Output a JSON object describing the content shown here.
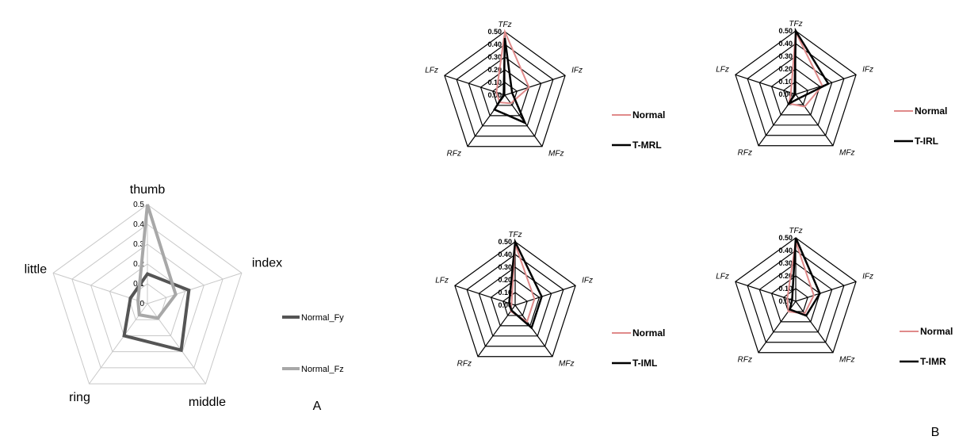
{
  "panel_labels": {
    "a": "A",
    "b": "B"
  },
  "colors": {
    "normal": "#e08a8a",
    "test": "#000000",
    "fy": "#555555",
    "fz": "#a8a8a8",
    "grid_light": "#c8c8c8",
    "grid_dark": "#000000"
  },
  "chart_data": [
    {
      "type": "radar",
      "axes": [
        "thumb",
        "index",
        "middle",
        "ring",
        "little"
      ],
      "tick_labels": [
        "0",
        "0.1",
        "0.2",
        "0.3",
        "0.4",
        "0.5"
      ],
      "ylim": [
        0,
        0.5
      ],
      "legend_placement": "right",
      "series": [
        {
          "name": "Normal_Fy",
          "values": [
            0.15,
            0.22,
            0.29,
            0.2,
            0.09
          ]
        },
        {
          "name": "Normal_Fz",
          "values": [
            0.5,
            0.15,
            0.09,
            0.07,
            0.05
          ]
        }
      ]
    },
    {
      "type": "radar",
      "axes": [
        "TFz",
        "IFz",
        "MFz",
        "RFz",
        "LFz"
      ],
      "tick_labels": [
        "0.00",
        "0.10",
        "0.20",
        "0.30",
        "0.40",
        "0.50"
      ],
      "ylim": [
        0,
        0.5
      ],
      "legend_placement": "right",
      "series": [
        {
          "name": "Normal",
          "values": [
            0.5,
            0.2,
            0.08,
            0.07,
            0.07
          ]
        },
        {
          "name": "T-MRL",
          "values": [
            0.45,
            0.06,
            0.27,
            0.14,
            0.01
          ]
        }
      ]
    },
    {
      "type": "radar",
      "axes": [
        "TFz",
        "IFz",
        "MFz",
        "RFz",
        "LFz"
      ],
      "tick_labels": [
        "0.00",
        "0.10",
        "0.20",
        "0.30",
        "0.40",
        "0.50"
      ],
      "ylim": [
        0,
        0.5
      ],
      "legend_placement": "right",
      "series": [
        {
          "name": "Normal",
          "values": [
            0.49,
            0.22,
            0.12,
            0.09,
            0.04
          ]
        },
        {
          "name": "T-IRL",
          "values": [
            0.5,
            0.27,
            0.04,
            0.09,
            0.01
          ]
        }
      ]
    },
    {
      "type": "radar",
      "axes": [
        "TFz",
        "IFz",
        "MFz",
        "RFz",
        "LFz"
      ],
      "tick_labels": [
        "0.00",
        "0.10",
        "0.20",
        "0.30",
        "0.40",
        "0.50"
      ],
      "ylim": [
        0,
        0.5
      ],
      "legend_placement": "right",
      "series": [
        {
          "name": "Normal",
          "values": [
            0.48,
            0.16,
            0.16,
            0.06,
            0.03
          ]
        },
        {
          "name": "T-IML",
          "values": [
            0.5,
            0.22,
            0.22,
            0.05,
            0.05
          ]
        }
      ]
    },
    {
      "type": "radar",
      "axes": [
        "TFz",
        "IFz",
        "MFz",
        "RFz",
        "LFz"
      ],
      "tick_labels": [
        "0.00",
        "0.10",
        "0.20",
        "0.30",
        "0.40",
        "0.50"
      ],
      "ylim": [
        0,
        0.5
      ],
      "legend_placement": "right",
      "series": [
        {
          "name": "Normal",
          "values": [
            0.47,
            0.15,
            0.12,
            0.1,
            0.07
          ]
        },
        {
          "name": "T-IMR",
          "values": [
            0.5,
            0.2,
            0.14,
            0.08,
            0.03
          ]
        }
      ]
    }
  ]
}
